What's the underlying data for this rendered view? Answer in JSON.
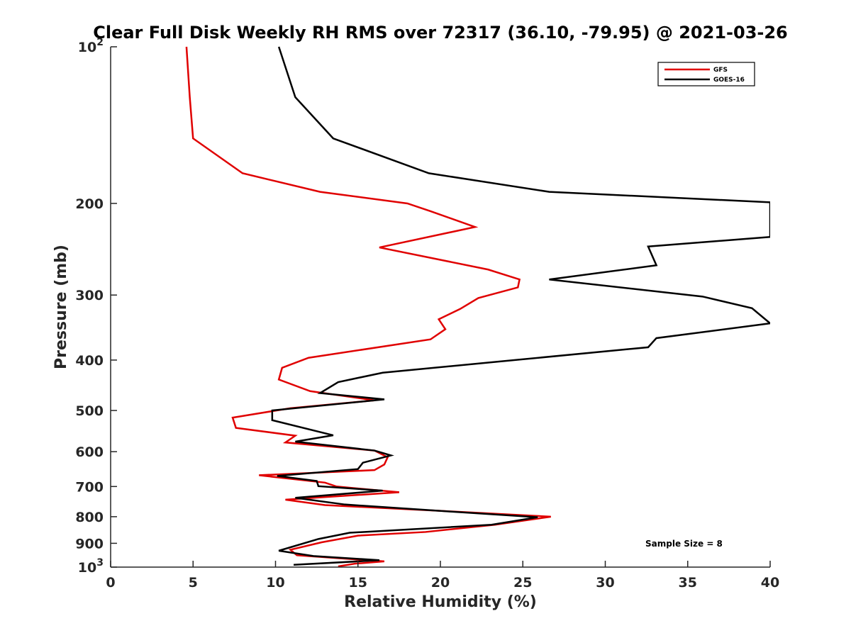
{
  "chart_data": {
    "type": "line",
    "title": "Clear Full Disk Weekly RH RMS over 72317 (36.10, -79.95) @ 2021-03-26",
    "xlabel": "Relative Humidity (%)",
    "ylabel": "Pressure (mb)",
    "xlim": [
      0,
      40
    ],
    "ylim": [
      100,
      1000
    ],
    "y_scale": "log",
    "y_reversed": true,
    "x_ticks": [
      {
        "value": 0,
        "label": "0"
      },
      {
        "value": 5,
        "label": "5"
      },
      {
        "value": 10,
        "label": "10"
      },
      {
        "value": 15,
        "label": "15"
      },
      {
        "value": 20,
        "label": "20"
      },
      {
        "value": 25,
        "label": "25"
      },
      {
        "value": 30,
        "label": "30"
      },
      {
        "value": 35,
        "label": "35"
      },
      {
        "value": 40,
        "label": "40"
      }
    ],
    "y_ticks": [
      {
        "value": 100,
        "base": "10",
        "exp": "2"
      },
      {
        "value": 200,
        "base": "200",
        "exp": ""
      },
      {
        "value": 300,
        "base": "300",
        "exp": ""
      },
      {
        "value": 400,
        "base": "400",
        "exp": ""
      },
      {
        "value": 500,
        "base": "500",
        "exp": ""
      },
      {
        "value": 600,
        "base": "600",
        "exp": ""
      },
      {
        "value": 700,
        "base": "700",
        "exp": ""
      },
      {
        "value": 800,
        "base": "800",
        "exp": ""
      },
      {
        "value": 900,
        "base": "900",
        "exp": ""
      },
      {
        "value": 1000,
        "base": "10",
        "exp": "3"
      }
    ],
    "grid": false,
    "legend_position": "top-right",
    "series": [
      {
        "name": "GFS",
        "color": "#e00000",
        "points": [
          [
            4.6,
            100
          ],
          [
            4.8,
            125
          ],
          [
            5.0,
            150
          ],
          [
            8.0,
            175
          ],
          [
            12.7,
            190
          ],
          [
            18.0,
            200
          ],
          [
            19.4,
            207
          ],
          [
            22.1,
            222
          ],
          [
            16.3,
            243
          ],
          [
            22.9,
            268
          ],
          [
            24.8,
            280
          ],
          [
            24.7,
            290
          ],
          [
            22.3,
            304
          ],
          [
            21.2,
            319
          ],
          [
            19.9,
            334
          ],
          [
            20.3,
            349
          ],
          [
            19.4,
            365
          ],
          [
            12.0,
            396
          ],
          [
            10.4,
            414
          ],
          [
            10.2,
            436
          ],
          [
            12.1,
            459
          ],
          [
            16.0,
            478
          ],
          [
            10.9,
            495
          ],
          [
            7.4,
            516
          ],
          [
            7.6,
            540
          ],
          [
            11.2,
            559
          ],
          [
            10.6,
            576
          ],
          [
            16.0,
            597
          ],
          [
            16.8,
            615
          ],
          [
            16.6,
            635
          ],
          [
            16.0,
            651
          ],
          [
            9.0,
            666
          ],
          [
            13.0,
            688
          ],
          [
            13.7,
            700
          ],
          [
            17.5,
            718
          ],
          [
            10.6,
            742
          ],
          [
            13.0,
            760
          ],
          [
            20.1,
            780
          ],
          [
            26.7,
            800
          ],
          [
            23.3,
            829
          ],
          [
            19.1,
            856
          ],
          [
            15.0,
            870
          ],
          [
            12.8,
            896
          ],
          [
            10.9,
            926
          ],
          [
            11.3,
            949
          ],
          [
            16.6,
            975
          ],
          [
            14.8,
            985
          ],
          [
            13.8,
            997
          ]
        ]
      },
      {
        "name": "GOES-16",
        "color": "#000000",
        "points": [
          [
            10.2,
            100
          ],
          [
            11.2,
            125
          ],
          [
            13.5,
            150
          ],
          [
            19.3,
            175
          ],
          [
            26.6,
            190
          ],
          [
            40.0,
            199
          ],
          [
            40.0,
            232
          ],
          [
            32.6,
            242
          ],
          [
            33.1,
            263
          ],
          [
            26.6,
            280
          ],
          [
            35.9,
            302
          ],
          [
            38.9,
            318
          ],
          [
            40.0,
            340
          ],
          [
            33.1,
            363
          ],
          [
            32.6,
            378
          ],
          [
            16.5,
            423
          ],
          [
            13.8,
            441
          ],
          [
            12.7,
            463
          ],
          [
            16.6,
            476
          ],
          [
            9.8,
            500
          ],
          [
            9.8,
            522
          ],
          [
            13.5,
            558
          ],
          [
            11.2,
            574
          ],
          [
            16.0,
            597
          ],
          [
            17.0,
            610
          ],
          [
            15.3,
            630
          ],
          [
            15.0,
            648
          ],
          [
            10.1,
            668
          ],
          [
            12.5,
            683
          ],
          [
            12.6,
            699
          ],
          [
            16.5,
            713
          ],
          [
            11.2,
            736
          ],
          [
            14.2,
            758
          ],
          [
            20.6,
            782
          ],
          [
            25.9,
            802
          ],
          [
            23.1,
            829
          ],
          [
            14.5,
            859
          ],
          [
            12.6,
            883
          ],
          [
            10.2,
            930
          ],
          [
            12.3,
            952
          ],
          [
            16.3,
            970
          ],
          [
            11.1,
            990
          ]
        ]
      }
    ],
    "legend": {
      "entries": [
        "GFS",
        "GOES-16"
      ]
    },
    "annotation": "Sample Size = 8"
  }
}
